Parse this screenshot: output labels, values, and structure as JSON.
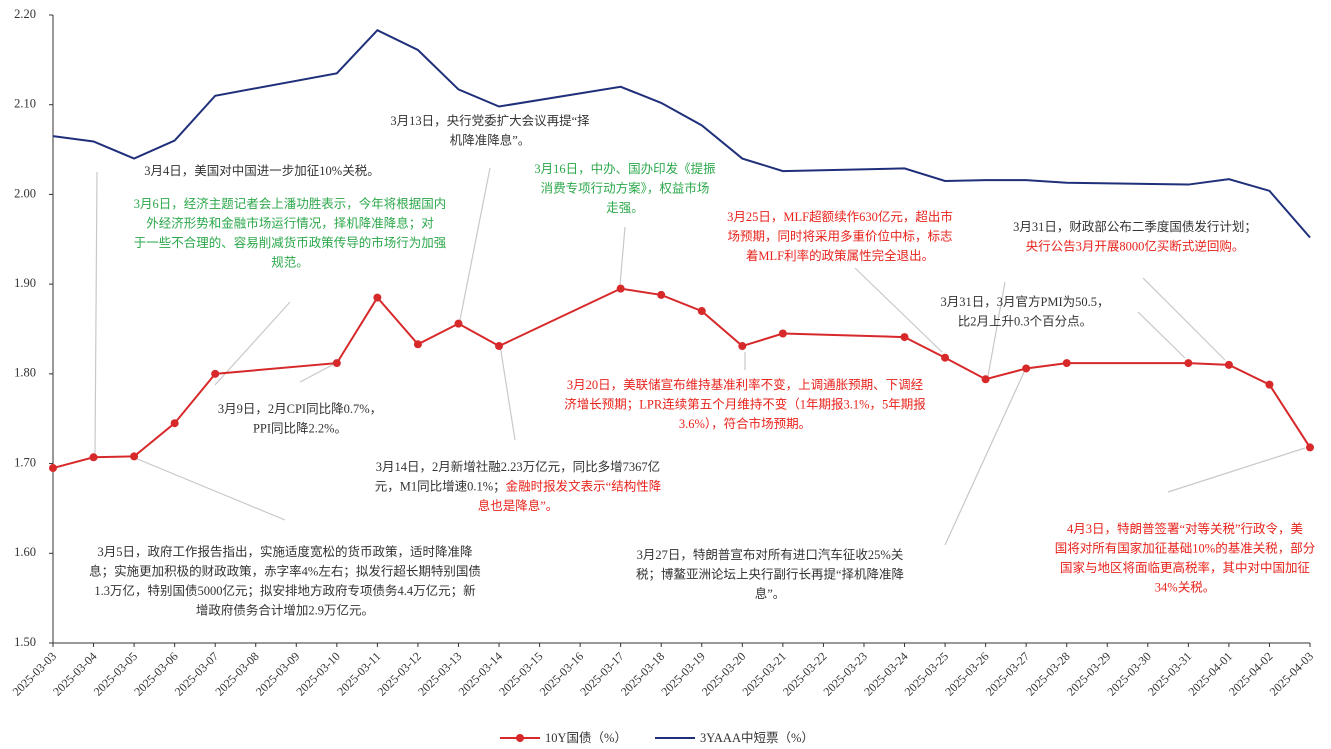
{
  "chart_data": {
    "type": "line",
    "categories": [
      "2025-03-03",
      "2025-03-04",
      "2025-03-05",
      "2025-03-06",
      "2025-03-07",
      "2025-03-08",
      "2025-03-09",
      "2025-03-10",
      "2025-03-11",
      "2025-03-12",
      "2025-03-13",
      "2025-03-14",
      "2025-03-15",
      "2025-03-16",
      "2025-03-17",
      "2025-03-18",
      "2025-03-19",
      "2025-03-20",
      "2025-03-21",
      "2025-03-22",
      "2025-03-23",
      "2025-03-24",
      "2025-03-25",
      "2025-03-26",
      "2025-03-27",
      "2025-03-28",
      "2025-03-29",
      "2025-03-30",
      "2025-03-31",
      "2025-04-01",
      "2025-04-02",
      "2025-04-03"
    ],
    "ylim": [
      1.5,
      2.2
    ],
    "yticks": [
      {
        "value": 1.5,
        "label": "1.50"
      },
      {
        "value": 1.6,
        "label": "1.60"
      },
      {
        "value": 1.7,
        "label": "1.70"
      },
      {
        "value": 1.8,
        "label": "1.80"
      },
      {
        "value": 1.9,
        "label": "1.90"
      },
      {
        "value": 2.0,
        "label": "2.00"
      },
      {
        "value": 2.1,
        "label": "2.10"
      },
      {
        "value": 2.2,
        "label": "2.20"
      }
    ],
    "grid": false,
    "legend": "bottom",
    "series": [
      {
        "name": "10Y国债（%）",
        "color": "#d7282a",
        "marker": true,
        "x": [
          "2025-03-03",
          "2025-03-04",
          "2025-03-05",
          "2025-03-06",
          "2025-03-07",
          "2025-03-10",
          "2025-03-11",
          "2025-03-12",
          "2025-03-13",
          "2025-03-14",
          "2025-03-17",
          "2025-03-18",
          "2025-03-19",
          "2025-03-20",
          "2025-03-21",
          "2025-03-24",
          "2025-03-25",
          "2025-03-26",
          "2025-03-27",
          "2025-03-28",
          "2025-03-31",
          "2025-04-01",
          "2025-04-02",
          "2025-04-03"
        ],
        "values": [
          1.695,
          1.707,
          1.708,
          1.745,
          1.8,
          1.812,
          1.885,
          1.833,
          1.856,
          1.831,
          1.895,
          1.888,
          1.87,
          1.831,
          1.845,
          1.841,
          1.818,
          1.794,
          1.806,
          1.812,
          1.812,
          1.81,
          1.788,
          1.718
        ]
      },
      {
        "name": "3YAAA中短票（%）",
        "color": "#1f2f7a",
        "marker": false,
        "x": [
          "2025-03-03",
          "2025-03-04",
          "2025-03-05",
          "2025-03-06",
          "2025-03-07",
          "2025-03-10",
          "2025-03-11",
          "2025-03-12",
          "2025-03-13",
          "2025-03-14",
          "2025-03-17",
          "2025-03-18",
          "2025-03-19",
          "2025-03-20",
          "2025-03-21",
          "2025-03-24",
          "2025-03-25",
          "2025-03-26",
          "2025-03-27",
          "2025-03-28",
          "2025-03-31",
          "2025-04-01",
          "2025-04-02",
          "2025-04-03"
        ],
        "values": [
          2.065,
          2.059,
          2.04,
          2.06,
          2.11,
          2.135,
          2.183,
          2.161,
          2.117,
          2.098,
          2.12,
          2.102,
          2.077,
          2.04,
          2.026,
          2.029,
          2.015,
          2.016,
          2.016,
          2.013,
          2.011,
          2.017,
          2.004,
          1.952
        ]
      }
    ],
    "annotations": [
      {
        "lines": [
          [
            {
              "text": "3月4日，美国对中国进一步加征10%关税。",
              "color": "#333333"
            }
          ]
        ]
      },
      {
        "lines": [
          [
            {
              "text": "3月6日，经济主题记者会上潘功胜表示，今年将根据国内",
              "color": "#2ca84b"
            }
          ],
          [
            {
              "text": "外经济形势和金融市场运行情况，择机降准降息；对",
              "color": "#2ca84b"
            }
          ],
          [
            {
              "text": "于一些不合理的、容易削减货币政策传导的市场行为加强",
              "color": "#2ca84b"
            }
          ],
          [
            {
              "text": "规范。",
              "color": "#2ca84b"
            }
          ]
        ]
      },
      {
        "lines": [
          [
            {
              "text": "3月13日，央行党委扩大会议再提“择",
              "color": "#333333"
            }
          ],
          [
            {
              "text": "机降准降息”。",
              "color": "#333333"
            }
          ]
        ]
      },
      {
        "lines": [
          [
            {
              "text": "3月16日，中办、国办印发《提振",
              "color": "#2ca84b"
            }
          ],
          [
            {
              "text": "消费专项行动方案》，权益市场",
              "color": "#2ca84b"
            }
          ],
          [
            {
              "text": "走强。",
              "color": "#2ca84b"
            }
          ]
        ]
      },
      {
        "lines": [
          [
            {
              "text": "3月25日，MLF超额续作630亿元，超出市",
              "color": "#e8231c"
            }
          ],
          [
            {
              "text": "场预期，同时将采用多重价位中标，标志",
              "color": "#e8231c"
            }
          ],
          [
            {
              "text": "着MLF利率的政策属性完全退出。",
              "color": "#e8231c"
            }
          ]
        ]
      },
      {
        "lines": [
          [
            {
              "text": "3月31日，财政部公布二季度国债发行计划；",
              "color": "#333333"
            }
          ],
          [
            {
              "text": "央行公告3月开展8000亿买断式逆回购。",
              "color": "#e8231c"
            }
          ]
        ]
      },
      {
        "lines": [
          [
            {
              "text": "3月31日，3月官方PMI为50.5，",
              "color": "#333333"
            }
          ],
          [
            {
              "text": "比2月上升0.3个百分点。",
              "color": "#333333"
            }
          ]
        ]
      },
      {
        "lines": [
          [
            {
              "text": "3月9日，2月CPI同比降0.7%，",
              "color": "#333333"
            }
          ],
          [
            {
              "text": "PPI同比降2.2%。",
              "color": "#333333"
            }
          ]
        ]
      },
      {
        "lines": [
          [
            {
              "text": "3月20日，美联储宣布维持基准利率不变，上调通胀预期、下调经",
              "color": "#e8231c"
            }
          ],
          [
            {
              "text": "济增长预期；LPR连续第五个月维持不变（1年期报3.1%，5年期报",
              "color": "#e8231c"
            }
          ],
          [
            {
              "text": "3.6%），符合市场预期。",
              "color": "#e8231c"
            }
          ]
        ]
      },
      {
        "lines": [
          [
            {
              "text": "3月14日，2月新增社融2.23万亿元，同比多增7367亿",
              "color": "#333333"
            }
          ],
          [
            {
              "text": "元，M1同比增速0.1%；",
              "color": "#333333"
            },
            {
              "text": "金融时报发文表示“结构性降",
              "color": "#e8231c"
            }
          ],
          [
            {
              "text": "息也是降息”。",
              "color": "#e8231c"
            }
          ]
        ]
      },
      {
        "lines": [
          [
            {
              "text": "3月5日，政府工作报告指出，实施适度宽松的货币政策，适时降准降",
              "color": "#333333"
            }
          ],
          [
            {
              "text": "息；实施更加积极的财政政策，赤字率4%左右；拟发行超长期特别国债",
              "color": "#333333"
            }
          ],
          [
            {
              "text": "1.3万亿，特别国债5000亿元；拟安排地方政府专项债务4.4万亿元；新",
              "color": "#333333"
            }
          ],
          [
            {
              "text": "增政府债务合计增加2.9万亿元。",
              "color": "#333333"
            }
          ]
        ]
      },
      {
        "lines": [
          [
            {
              "text": "3月27日，特朗普宣布对所有进口汽车征收25%关",
              "color": "#333333"
            }
          ],
          [
            {
              "text": "税；博鳌亚洲论坛上央行副行长再提“择机降准降",
              "color": "#333333"
            }
          ],
          [
            {
              "text": "息”。",
              "color": "#333333"
            }
          ]
        ]
      },
      {
        "lines": [
          [
            {
              "text": "4月3日，特朗普签署“对等关税”行政令，美",
              "color": "#e8231c"
            }
          ],
          [
            {
              "text": "国将对所有国家加征基础10%的基准关税，部分",
              "color": "#e8231c"
            }
          ],
          [
            {
              "text": "国家与地区将面临更高税率，其中对中国加征",
              "color": "#e8231c"
            }
          ],
          [
            {
              "text": "34%关税。",
              "color": "#e8231c"
            }
          ]
        ]
      }
    ]
  }
}
